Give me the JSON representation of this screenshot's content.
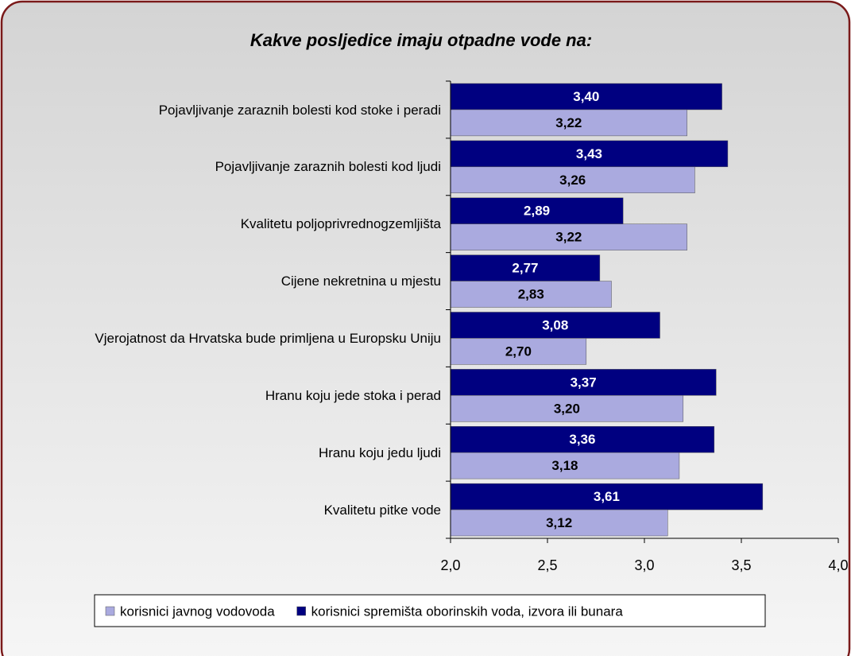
{
  "chart_data": {
    "type": "bar",
    "orientation": "horizontal",
    "title": "Kakve posljedice imaju otpadne vode na:",
    "categories": [
      "Pojavljivanje zaraznih bolesti kod stoke i peradi",
      "Pojavljivanje zaraznih bolesti kod ljudi",
      "Kvalitetu poljoprivrednogzemljišta",
      "Cijene nekretnina u mjestu",
      "Vjerojatnost da Hrvatska bude primljena u Europsku Uniju",
      "Hranu koju jede stoka i perad",
      "Hranu koju jedu ljudi",
      "Kvalitetu pitke vode"
    ],
    "series": [
      {
        "name": "korisnici javnog vodovoda",
        "color": "#aaaadf",
        "values": [
          3.22,
          3.26,
          3.22,
          2.83,
          2.7,
          3.2,
          3.18,
          3.12
        ],
        "value_labels": [
          "3,22",
          "3,26",
          "3,22",
          "2,83",
          "2,70",
          "3,20",
          "3,18",
          "3,12"
        ]
      },
      {
        "name": "korisnici spremišta oborinskih voda, izvora ili bunara",
        "color": "#000080",
        "values": [
          3.4,
          3.43,
          2.89,
          2.77,
          3.08,
          3.37,
          3.36,
          3.61
        ],
        "value_labels": [
          "3,40",
          "3,43",
          "2,89",
          "2,77",
          "3,08",
          "3,37",
          "3,36",
          "3,61"
        ]
      }
    ],
    "xlim": [
      2.0,
      4.0
    ],
    "xticks": [
      {
        "value": 2.0,
        "label": "2,0"
      },
      {
        "value": 2.5,
        "label": "2,5"
      },
      {
        "value": 3.0,
        "label": "3,0"
      },
      {
        "value": 3.5,
        "label": "3,5"
      },
      {
        "value": 4.0,
        "label": "4,0"
      }
    ],
    "legend": "bottom"
  }
}
